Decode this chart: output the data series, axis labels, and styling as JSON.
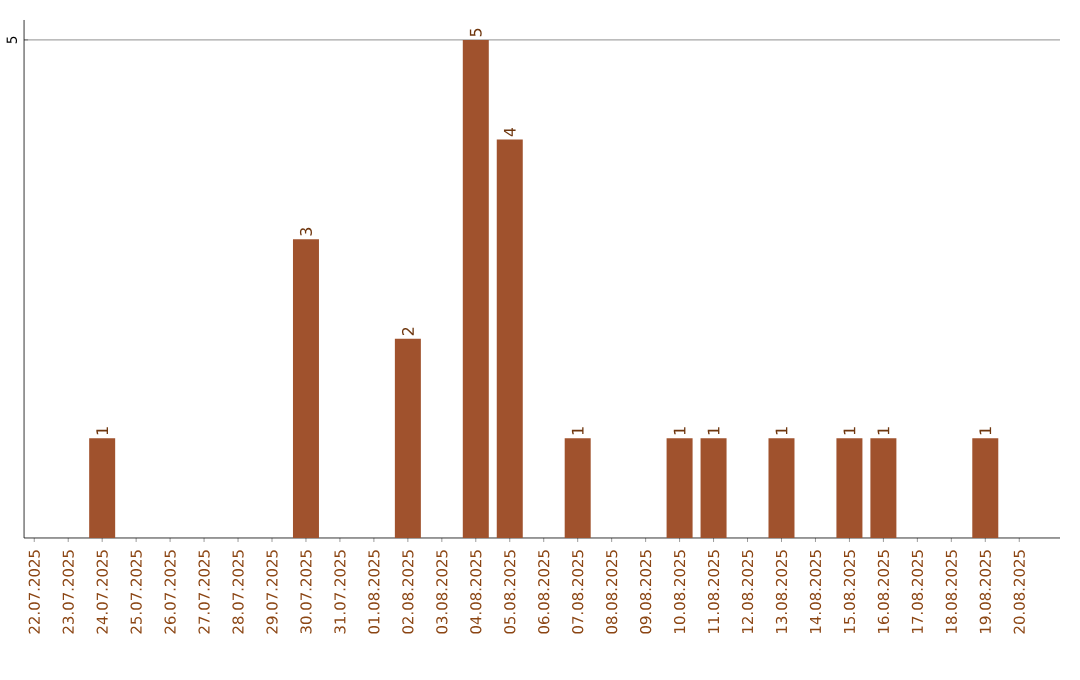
{
  "chart_data": {
    "type": "bar",
    "categories": [
      "22.07.2025",
      "23.07.2025",
      "24.07.2025",
      "25.07.2025",
      "26.07.2025",
      "27.07.2025",
      "28.07.2025",
      "29.07.2025",
      "30.07.2025",
      "31.07.2025",
      "01.08.2025",
      "02.08.2025",
      "03.08.2025",
      "04.08.2025",
      "05.08.2025",
      "06.08.2025",
      "07.08.2025",
      "08.08.2025",
      "09.08.2025",
      "10.08.2025",
      "11.08.2025",
      "12.08.2025",
      "13.08.2025",
      "14.08.2025",
      "15.08.2025",
      "16.08.2025",
      "17.08.2025",
      "18.08.2025",
      "19.08.2025",
      "20.08.2025"
    ],
    "values": [
      0,
      0,
      1,
      0,
      0,
      0,
      0,
      0,
      3,
      0,
      0,
      2,
      0,
      5,
      4,
      0,
      1,
      0,
      0,
      1,
      1,
      0,
      1,
      0,
      1,
      1,
      0,
      0,
      1,
      0
    ],
    "value_labels": [
      null,
      null,
      "1",
      null,
      null,
      null,
      null,
      null,
      "3",
      null,
      null,
      "2",
      null,
      "5",
      "4",
      null,
      "1",
      null,
      null,
      "1",
      "1",
      null,
      "1",
      null,
      "1",
      "1",
      null,
      null,
      "1",
      null
    ],
    "color": "#a0522d",
    "ylim": [
      0,
      5.2
    ],
    "yticks": [
      5
    ],
    "grid": "y"
  }
}
